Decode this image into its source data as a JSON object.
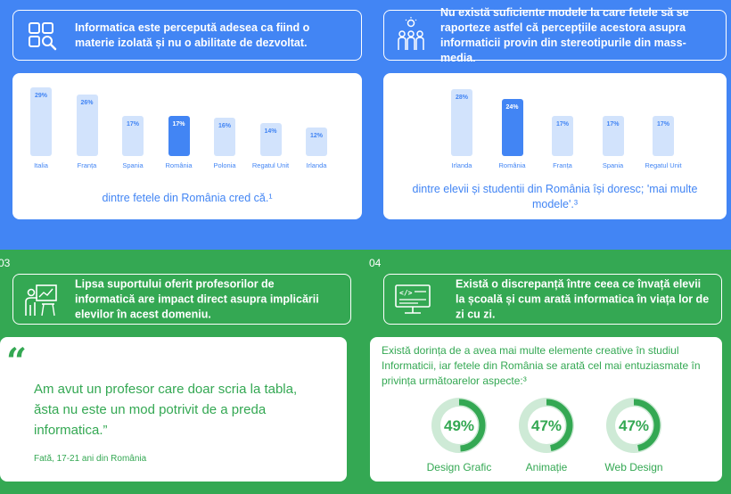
{
  "colors": {
    "blue": "#4285f4",
    "light_blue": "#d2e3fc",
    "green": "#34a853",
    "light_green": "#ceead6",
    "white": "#ffffff"
  },
  "top_left": {
    "header_icon": "grid-search-icon",
    "header_text": "Informatica este percepută adesea ca fiind o materie izolată și nu o abilitate de dezvoltat.",
    "caption": "dintre fetele din România cred că.¹"
  },
  "top_right": {
    "header_icon": "lightbulb-people-icon",
    "header_text": "Nu există suficiente modele la care fetele să se raporteze astfel că percepțiile acestora asupra informaticii provin din stereotipurile din mass-media.",
    "caption": "dintre elevii și studentii din România își doresc; 'mai multe modele'.³"
  },
  "chart_data": [
    {
      "type": "bar",
      "categories": [
        "Italia",
        "Franța",
        "Spania",
        "România",
        "Polonia",
        "Regatul Unit",
        "Irlanda"
      ],
      "values": [
        29,
        26,
        17,
        17,
        16,
        14,
        12
      ],
      "value_labels": [
        "29%",
        "26%",
        "17%",
        "17%",
        "16%",
        "14%",
        "12%"
      ],
      "highlight": "România",
      "ylim": [
        0,
        30
      ]
    },
    {
      "type": "bar",
      "categories": [
        "Irlanda",
        "România",
        "Franța",
        "Spania",
        "Regatul Unit"
      ],
      "values": [
        28,
        24,
        17,
        17,
        17
      ],
      "value_labels": [
        "28%",
        "24%",
        "17%",
        "17%",
        "17%"
      ],
      "highlight": "România",
      "ylim": [
        0,
        30
      ]
    }
  ],
  "bottom_left": {
    "section_number": "03",
    "header_icon": "teacher-presentation-icon",
    "header_text": "Lipsa suportului oferit profesorilor de informatică are impact direct asupra implicării elevilor în acest domeniu.",
    "quote_mark": "“",
    "quote": "Am avut un profesor care doar scria la tabla, ăsta nu este un mod potrivit de a preda informatica.”",
    "quote_source": "Fată, 17-21 ani din România"
  },
  "bottom_right": {
    "section_number": "04",
    "header_icon": "code-monitor-icon",
    "header_text": "Există o discrepanță între ceea ce învață elevii la școală și cum arată informatica în viața lor de zi cu zi.",
    "intro": "Există dorința de a avea mai multe elemente creative în studiul Informaticii, iar fetele din România se arată cel mai entuziasmate în privința următoarelor aspecte:³",
    "rings": [
      {
        "value": 49,
        "label": "49%",
        "caption": "Design Grafic"
      },
      {
        "value": 47,
        "label": "47%",
        "caption": "Animație"
      },
      {
        "value": 47,
        "label": "47%",
        "caption": "Web Design"
      }
    ]
  }
}
